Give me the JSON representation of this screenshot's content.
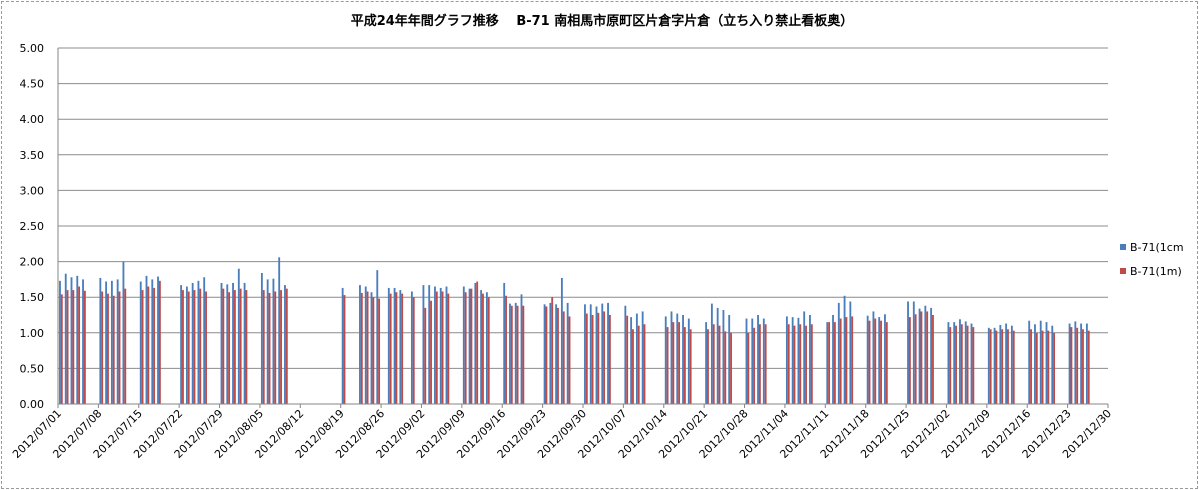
{
  "chart_data": {
    "type": "bar",
    "title": "平成24年年間グラフ推移　 B-71 南相馬市原町区片倉字片倉（立ち入り禁止看板奥）",
    "xlabel": "",
    "ylabel": "",
    "ylim": [
      0,
      5.0
    ],
    "yticks": [
      "0.00",
      "0.50",
      "1.00",
      "1.50",
      "2.00",
      "2.50",
      "3.00",
      "3.50",
      "4.00",
      "4.50",
      "5.00"
    ],
    "xtick_labels": [
      "2012/07/01",
      "2012/07/08",
      "2012/07/15",
      "2012/07/22",
      "2012/07/29",
      "2012/08/05",
      "2012/08/12",
      "2012/08/19",
      "2012/08/26",
      "2012/09/02",
      "2012/09/09",
      "2012/09/16",
      "2012/09/23",
      "2012/09/30",
      "2012/10/07",
      "2012/10/14",
      "2012/10/21",
      "2012/10/28",
      "2012/11/04",
      "2012/11/11",
      "2012/11/18",
      "2012/11/25",
      "2012/12/02",
      "2012/12/09",
      "2012/12/16",
      "2012/12/23",
      "2012/12/30"
    ],
    "grid": true,
    "legend_position": "right",
    "colors": {
      "series1": "#4a7ebb",
      "series2": "#be4b48",
      "grid": "#8c8c8c",
      "axis": "#868686"
    },
    "series": [
      {
        "name": "B-71(1cm",
        "values": [
          1.73,
          1.83,
          1.78,
          1.8,
          1.75,
          null,
          null,
          1.77,
          1.72,
          1.73,
          1.75,
          2.0,
          null,
          null,
          1.72,
          1.8,
          1.75,
          1.79,
          null,
          null,
          null,
          1.67,
          1.65,
          1.7,
          1.73,
          1.78,
          null,
          null,
          1.7,
          1.68,
          1.7,
          1.9,
          1.7,
          null,
          null,
          1.84,
          1.75,
          1.76,
          2.06,
          1.67,
          null,
          null,
          null,
          null,
          null,
          null,
          null,
          null,
          null,
          1.63,
          null,
          null,
          1.67,
          1.65,
          1.57,
          1.88,
          null,
          1.63,
          1.63,
          1.6,
          null,
          1.58,
          null,
          1.67,
          1.67,
          1.65,
          1.63,
          1.65,
          null,
          null,
          1.65,
          1.62,
          1.7,
          1.6,
          1.57,
          null,
          null,
          1.7,
          1.41,
          1.42,
          1.54,
          null,
          null,
          null,
          1.4,
          1.42,
          1.4,
          1.77,
          1.42,
          null,
          null,
          1.4,
          1.4,
          1.37,
          1.41,
          1.42,
          null,
          null,
          1.38,
          1.22,
          1.27,
          1.3,
          null,
          null,
          null,
          1.23,
          1.3,
          1.27,
          1.25,
          1.2,
          null,
          null,
          1.15,
          1.41,
          1.35,
          1.32,
          1.25,
          null,
          null,
          1.2,
          1.2,
          1.25,
          1.2,
          null,
          null,
          null,
          1.23,
          1.22,
          1.21,
          1.3,
          1.25,
          null,
          null,
          1.15,
          1.25,
          1.42,
          1.52,
          1.44,
          null,
          null,
          1.24,
          1.3,
          1.22,
          1.26,
          null,
          null,
          null,
          1.44,
          1.44,
          1.34,
          1.38,
          1.35,
          null,
          null,
          1.15,
          1.15,
          1.19,
          1.16,
          1.13,
          null,
          null,
          1.07,
          1.07,
          1.11,
          1.13,
          1.1,
          null,
          null,
          1.17,
          1.12,
          1.17,
          1.15,
          1.1,
          null,
          null,
          1.13,
          1.16,
          1.13,
          1.13,
          null,
          null,
          null
        ]
      },
      {
        "name": "B-71(1m)",
        "values": [
          1.54,
          1.6,
          1.6,
          1.65,
          1.59,
          null,
          null,
          1.58,
          1.55,
          1.52,
          1.58,
          1.62,
          null,
          null,
          1.6,
          1.65,
          1.63,
          1.73,
          null,
          null,
          null,
          1.6,
          1.58,
          1.6,
          1.62,
          1.58,
          null,
          null,
          1.62,
          1.57,
          1.6,
          1.62,
          1.6,
          null,
          null,
          1.6,
          1.56,
          1.58,
          1.6,
          1.62,
          null,
          null,
          null,
          null,
          null,
          null,
          null,
          null,
          null,
          1.53,
          null,
          null,
          1.56,
          1.58,
          1.5,
          1.48,
          null,
          1.55,
          1.57,
          1.55,
          null,
          1.5,
          null,
          1.35,
          1.45,
          1.58,
          1.58,
          1.55,
          null,
          null,
          1.57,
          1.62,
          1.72,
          1.55,
          1.5,
          null,
          null,
          1.52,
          1.38,
          1.38,
          1.38,
          null,
          null,
          null,
          1.37,
          1.5,
          1.35,
          1.3,
          1.23,
          null,
          null,
          1.27,
          1.25,
          1.28,
          1.3,
          1.25,
          null,
          null,
          1.24,
          1.05,
          1.1,
          1.12,
          null,
          null,
          null,
          1.08,
          1.15,
          1.15,
          1.08,
          1.05,
          null,
          null,
          1.05,
          1.12,
          1.1,
          1.02,
          1.0,
          null,
          null,
          1.0,
          1.07,
          1.12,
          1.12,
          null,
          null,
          null,
          1.12,
          1.1,
          1.12,
          1.1,
          1.12,
          null,
          null,
          1.15,
          1.15,
          1.2,
          1.22,
          1.23,
          null,
          null,
          1.17,
          1.2,
          1.17,
          1.15,
          null,
          null,
          null,
          1.22,
          1.26,
          1.3,
          1.3,
          1.25,
          null,
          null,
          1.08,
          1.1,
          1.12,
          1.1,
          1.08,
          null,
          null,
          1.05,
          1.03,
          1.05,
          1.05,
          1.03,
          null,
          null,
          1.05,
          1.0,
          1.03,
          1.03,
          1.0,
          null,
          null,
          1.08,
          1.07,
          1.05,
          1.03,
          null,
          null,
          null
        ]
      }
    ]
  }
}
